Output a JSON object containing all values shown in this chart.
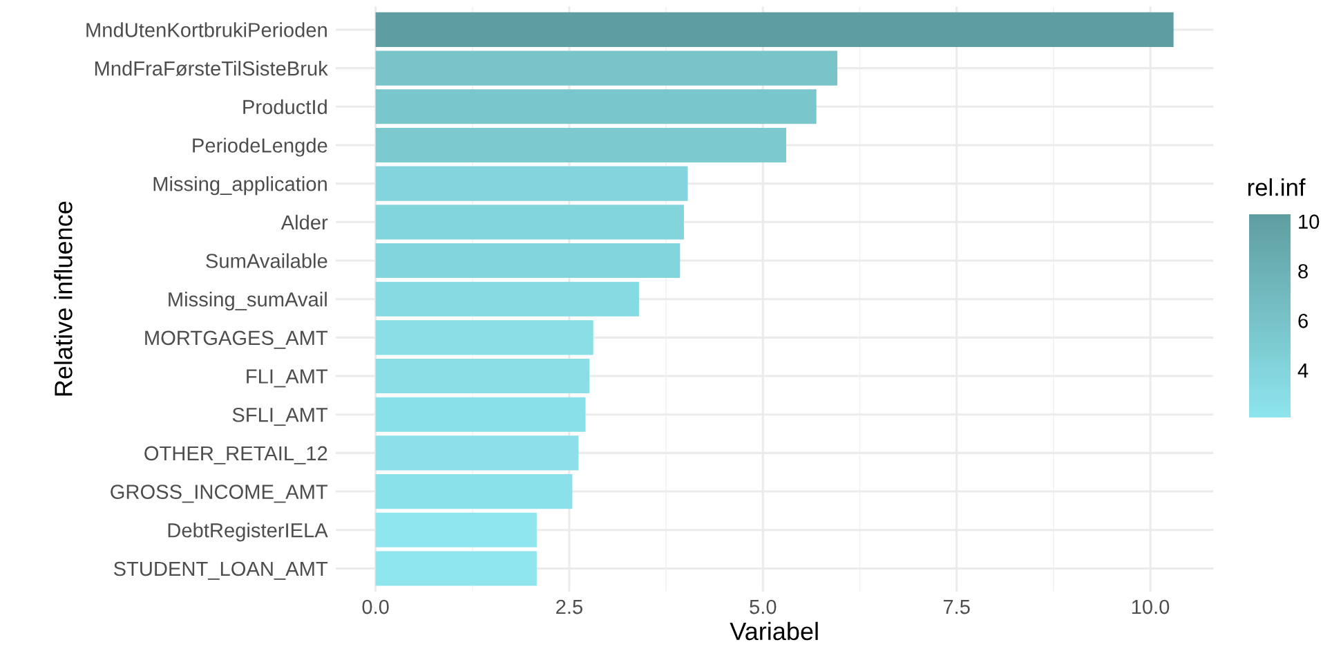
{
  "chart_data": {
    "type": "bar",
    "orientation": "horizontal",
    "xlabel": "Variabel",
    "ylabel": "Relative influence",
    "clabel": "rel.inf",
    "categories": [
      "MndUtenKortbrukiPerioden",
      "MndFraFørsteTilSisteBruk",
      "ProductId",
      "PeriodeLengde",
      "Missing_application",
      "Alder",
      "SumAvailable",
      "Missing_sumAvail",
      "MORTGAGES_AMT",
      "FLI_AMT",
      "SFLI_AMT",
      "OTHER_RETAIL_12",
      "GROSS_INCOME_AMT",
      "DebtRegisterIELA",
      "STUDENT_LOAN_AMT"
    ],
    "values": [
      10.3,
      5.96,
      5.69,
      5.3,
      4.03,
      3.98,
      3.93,
      3.4,
      2.81,
      2.76,
      2.71,
      2.62,
      2.54,
      2.08,
      2.08
    ],
    "colors": [
      "#5f9ea0",
      "#78c4c9",
      "#79c6cc",
      "#7cc9cf",
      "#83d4dc",
      "#83d5dc",
      "#83d5dc",
      "#86dae1",
      "#8adfe7",
      "#8adfe7",
      "#8ae0e8",
      "#8be0e9",
      "#8be1ea",
      "#8ee5ee",
      "#8ee5ee"
    ],
    "xlim": [
      -0.515,
      10.815
    ],
    "xticks": [
      {
        "value": 0,
        "label": "0.0"
      },
      {
        "value": 2.5,
        "label": "2.5"
      },
      {
        "value": 5,
        "label": "5.0"
      },
      {
        "value": 7.5,
        "label": "7.5"
      },
      {
        "value": 10,
        "label": "10.0"
      }
    ],
    "clim": [
      2.08,
      10.3
    ],
    "cticks": [
      4,
      6,
      8,
      10
    ],
    "grid": true
  }
}
